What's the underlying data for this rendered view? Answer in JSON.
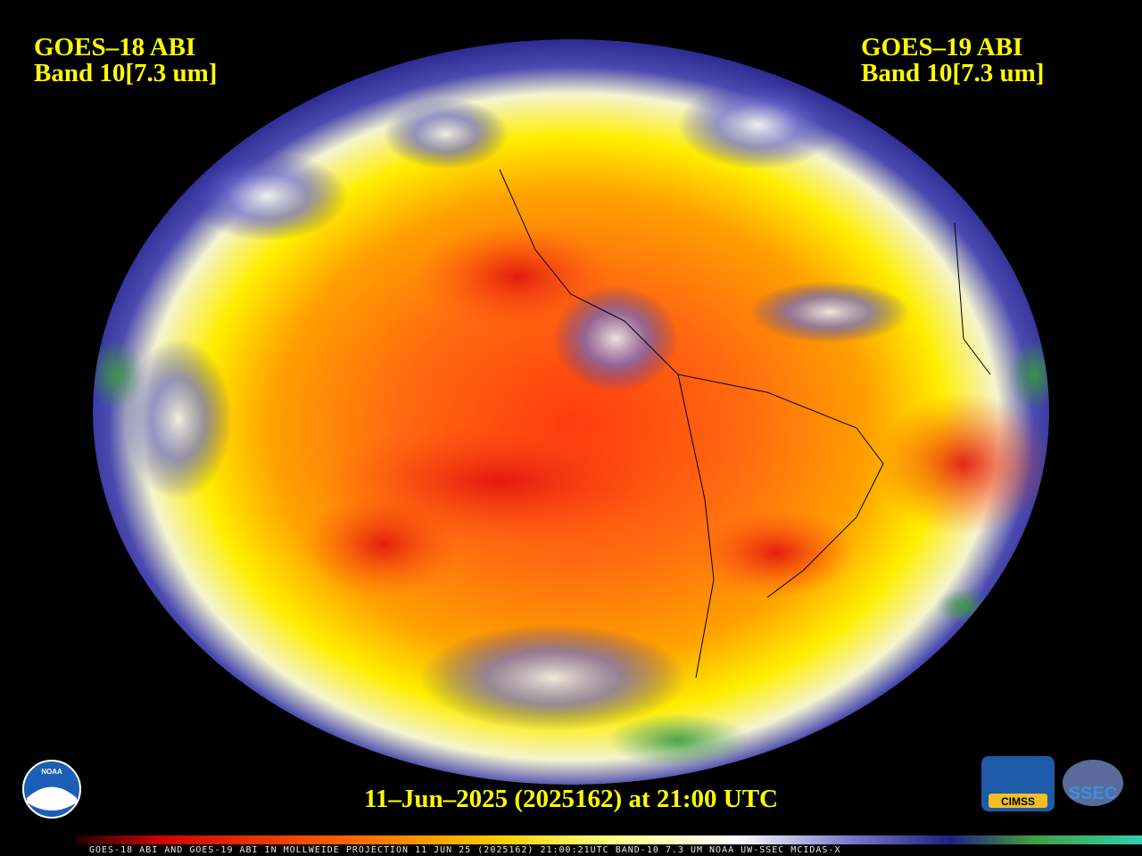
{
  "left_label": {
    "satellite": "GOES–18 ABI",
    "band": "Band 10[7.3 um]"
  },
  "right_label": {
    "satellite": "GOES–19 ABI",
    "band": "Band 10[7.3 um]"
  },
  "timestamp": "11–Jun–2025 (2025162) at 21:00 UTC",
  "footer": "GOES-18 ABI AND GOES-19 ABI IN MOLLWEIDE PROJECTION 11 JUN 25 (2025162) 21:00:21UTC BAND-10 7.3 UM NOAA UW-SSEC MCIDAS-X",
  "logos": {
    "noaa": "NOAA",
    "cimss": "CIMSS",
    "ssec": "SSEC"
  }
}
